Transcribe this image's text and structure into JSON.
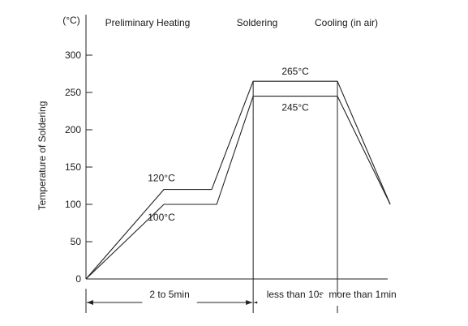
{
  "chart_data": {
    "type": "line",
    "title": "",
    "xlabel": "",
    "ylabel": "Temperature of Soldering",
    "y_unit": "(°C)",
    "ylim": [
      0,
      300
    ],
    "y_ticks": [
      0,
      50,
      100,
      150,
      200,
      250,
      300
    ],
    "grid": false,
    "legend": "none",
    "phases": [
      {
        "name": "Preliminary Heating",
        "duration": "2 to 5min"
      },
      {
        "name": "Soldering",
        "duration": "less than 10s"
      },
      {
        "name": "Cooling (in air)",
        "duration": "more than 1min"
      }
    ],
    "series": [
      {
        "values": [
          {
            "t": 0.0,
            "y": 0
          },
          {
            "t": 0.62,
            "y": 120
          },
          {
            "t": 1.0,
            "y": 120
          },
          {
            "t": 1.33,
            "y": 265
          },
          {
            "t": 2.0,
            "y": 265
          },
          {
            "t": 2.42,
            "y": 100
          }
        ]
      },
      {
        "values": [
          {
            "t": 0.0,
            "y": 0
          },
          {
            "t": 0.62,
            "y": 100
          },
          {
            "t": 1.04,
            "y": 100
          },
          {
            "t": 1.33,
            "y": 245
          },
          {
            "t": 2.0,
            "y": 245
          },
          {
            "t": 2.42,
            "y": 100
          }
        ]
      }
    ],
    "annotations": [
      {
        "text": "265°C",
        "y": 265
      },
      {
        "text": "245°C",
        "y": 245
      },
      {
        "text": "120°C",
        "y": 120
      },
      {
        "text": "100°C",
        "y": 100
      }
    ],
    "phase_boundaries": [
      0.0,
      1.33,
      2.0
    ]
  }
}
